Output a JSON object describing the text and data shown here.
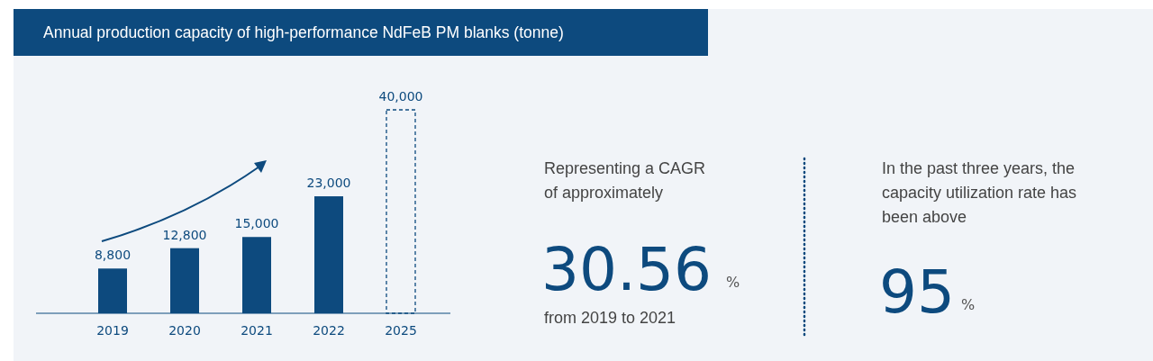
{
  "chart_data": [
    {
      "type": "bar",
      "title": "Annual production capacity of high-performance NdFeB PM blanks (tonne)",
      "categories": [
        "2019",
        "2020",
        "2021",
        "2022",
        "2025"
      ],
      "series": [
        {
          "color": "#0d4a7e",
          "values": [
            8800,
            12800,
            15000,
            23000,
            null
          ],
          "value_labels": [
            "8,800",
            "12,800",
            "15,000",
            "23,000",
            null
          ]
        },
        {
          "color": "#0d4a7e",
          "line_style": "dashed",
          "values": [
            null,
            null,
            null,
            null,
            40000
          ],
          "value_labels": [
            null,
            null,
            null,
            null,
            "40,000"
          ]
        }
      ]
    },
    {
      "type": "other",
      "title": "Representing a CAGR of approximately",
      "annotations": [
        "30.56",
        "%",
        "from 2019 to 2021"
      ]
    },
    {
      "type": "other",
      "title": "In the past three years, the capacity utilization rate has been above",
      "annotations": [
        "95",
        "%"
      ]
    }
  ]
}
